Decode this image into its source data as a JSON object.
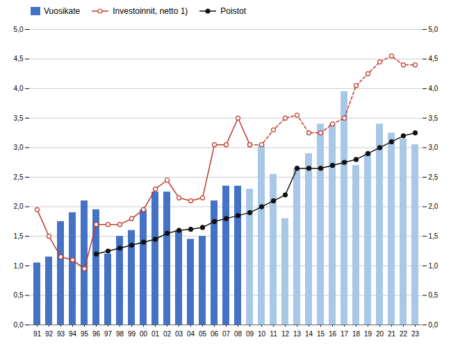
{
  "chart_data": {
    "type": "bar",
    "categories": [
      "91",
      "92",
      "93",
      "94",
      "95",
      "96",
      "97",
      "98",
      "99",
      "00",
      "01",
      "02",
      "03",
      "04",
      "05",
      "06",
      "07",
      "08",
      "09",
      "10",
      "11",
      "12",
      "13",
      "14",
      "15",
      "16",
      "17",
      "18",
      "19",
      "20",
      "21",
      "22",
      "23"
    ],
    "series": [
      {
        "name": "Vuosikate",
        "type": "bar",
        "color": "#4472C4",
        "colors": [
          "#4472C4",
          "#4472C4",
          "#4472C4",
          "#4472C4",
          "#4472C4",
          "#4472C4",
          "#4472C4",
          "#4472C4",
          "#4472C4",
          "#4472C4",
          "#4472C4",
          "#4472C4",
          "#4472C4",
          "#4472C4",
          "#4472C4",
          "#4472C4",
          "#4472C4",
          "#4472C4",
          "#A8C8E8",
          "#A8C8E8",
          "#A8C8E8",
          "#A8C8E8",
          "#A8C8E8",
          "#A8C8E8",
          "#A8C8E8",
          "#A8C8E8",
          "#A8C8E8",
          "#A8C8E8",
          "#A8C8E8",
          "#A8C8E8",
          "#A8C8E8",
          "#A8C8E8",
          "#A8C8E8"
        ],
        "values": [
          1.05,
          1.15,
          1.75,
          1.9,
          2.1,
          1.95,
          1.2,
          1.5,
          1.6,
          1.95,
          2.25,
          2.25,
          1.6,
          1.45,
          1.5,
          2.1,
          2.35,
          2.35,
          2.3,
          3.05,
          2.55,
          1.8,
          2.65,
          2.9,
          3.4,
          3.4,
          3.95,
          2.7,
          2.9,
          3.4,
          3.25,
          3.15,
          3.05
        ]
      },
      {
        "name": "Investoinnit, netto 1)",
        "type": "line",
        "axis": "y2",
        "color": "#C0392B",
        "marker": "circle_open",
        "line_style": "solid",
        "values": [
          1.95,
          1.5,
          1.15,
          1.1,
          0.95,
          1.7,
          1.7,
          1.7,
          1.8,
          1.95,
          2.3,
          2.45,
          2.15,
          2.1,
          2.15,
          3.05,
          3.05,
          3.5,
          3.05,
          null,
          null,
          null,
          null,
          null,
          null,
          null,
          null,
          null,
          null,
          null,
          null,
          null,
          null
        ]
      },
      {
        "name": "Investoinnit, netto 1)",
        "type": "line",
        "axis": "y2",
        "color": "#C0392B",
        "marker": "circle_open",
        "line_style": "dashed",
        "values": [
          null,
          null,
          null,
          null,
          null,
          null,
          null,
          null,
          null,
          null,
          null,
          null,
          null,
          null,
          null,
          null,
          null,
          null,
          3.05,
          3.05,
          3.3,
          3.5,
          3.55,
          3.25,
          3.25,
          3.4,
          3.5,
          4.05,
          4.25,
          4.45,
          4.55,
          4.4,
          4.4
        ]
      },
      {
        "name": "Poistot",
        "type": "line",
        "axis": "y2",
        "color": "#111111",
        "marker": "circle",
        "line_style": "solid",
        "values": [
          null,
          null,
          null,
          null,
          null,
          1.2,
          1.25,
          1.3,
          1.35,
          1.4,
          1.45,
          1.55,
          1.6,
          1.62,
          1.65,
          1.75,
          1.8,
          1.85,
          1.9,
          2.0,
          2.1,
          2.2,
          2.65,
          2.65,
          2.65,
          2.7,
          2.75,
          2.8,
          2.9,
          3.0,
          3.1,
          3.2,
          3.25
        ]
      }
    ],
    "ylim": [
      0.0,
      5.0
    ],
    "yticks": [
      {
        "value": 0.0,
        "label": "0,0"
      },
      {
        "value": 0.5,
        "label": "0,5"
      },
      {
        "value": 1.0,
        "label": "1,0"
      },
      {
        "value": 1.5,
        "label": "1,5"
      },
      {
        "value": 2.0,
        "label": "2,0"
      },
      {
        "value": 2.5,
        "label": "2,5"
      },
      {
        "value": 3.0,
        "label": "3,0"
      },
      {
        "value": 3.5,
        "label": "3,5"
      },
      {
        "value": 4.0,
        "label": "4,0"
      },
      {
        "value": 4.5,
        "label": "4,5"
      },
      {
        "value": 5.0,
        "label": "5,0"
      }
    ],
    "y2lim": [
      0.0,
      5.0
    ],
    "y2ticks": [
      {
        "value": 0.0,
        "label": "0,0"
      },
      {
        "value": 0.5,
        "label": "0,5"
      },
      {
        "value": 1.0,
        "label": "1,0"
      },
      {
        "value": 1.5,
        "label": "1,5"
      },
      {
        "value": 2.0,
        "label": "2,0"
      },
      {
        "value": 2.5,
        "label": "2,5"
      },
      {
        "value": 3.0,
        "label": "3,0"
      },
      {
        "value": 3.5,
        "label": "3,5"
      },
      {
        "value": 4.0,
        "label": "4,0"
      },
      {
        "value": 4.5,
        "label": "4,5"
      },
      {
        "value": 5.0,
        "label": "5,0"
      }
    ],
    "grid": true,
    "legend": "upper left"
  }
}
